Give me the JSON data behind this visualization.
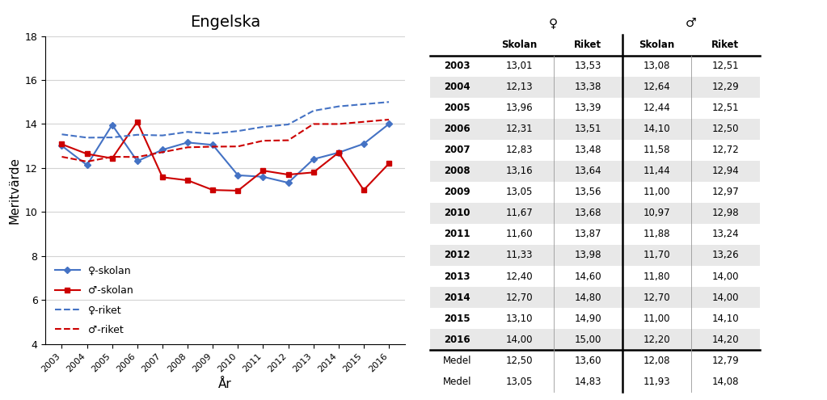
{
  "title": "Engelska",
  "xlabel": "År",
  "ylabel": "Meritvärde",
  "years": [
    2003,
    2004,
    2005,
    2006,
    2007,
    2008,
    2009,
    2010,
    2011,
    2012,
    2013,
    2014,
    2015,
    2016
  ],
  "female_skolan": [
    13.01,
    12.13,
    13.96,
    12.31,
    12.83,
    13.16,
    13.05,
    11.67,
    11.6,
    11.33,
    12.4,
    12.7,
    13.1,
    14.0
  ],
  "female_riket": [
    13.53,
    13.38,
    13.39,
    13.51,
    13.48,
    13.64,
    13.56,
    13.68,
    13.87,
    13.98,
    14.6,
    14.8,
    14.9,
    15.0
  ],
  "male_skolan": [
    13.08,
    12.64,
    12.44,
    14.1,
    11.58,
    11.44,
    11.0,
    10.97,
    11.88,
    11.7,
    11.8,
    12.7,
    11.0,
    12.2
  ],
  "male_riket": [
    12.51,
    12.29,
    12.51,
    12.5,
    12.72,
    12.94,
    12.97,
    12.98,
    13.24,
    13.26,
    14.0,
    14.0,
    14.1,
    14.2
  ],
  "ylim": [
    4,
    18
  ],
  "yticks": [
    4,
    6,
    8,
    10,
    12,
    14,
    16,
    18
  ],
  "color_blue": "#4472C4",
  "color_red": "#CC0000",
  "bg_alt": "#E8E8E8",
  "bg_white": "#FFFFFF",
  "medel_rows": [
    [
      "Medel",
      "12,50",
      "13,60",
      "12,08",
      "12,79"
    ],
    [
      "Medel",
      "13,05",
      "14,83",
      "11,93",
      "14,08"
    ]
  ],
  "table_data": [
    [
      "2003",
      "13,01",
      "13,53",
      "13,08",
      "12,51"
    ],
    [
      "2004",
      "12,13",
      "13,38",
      "12,64",
      "12,29"
    ],
    [
      "2005",
      "13,96",
      "13,39",
      "12,44",
      "12,51"
    ],
    [
      "2006",
      "12,31",
      "13,51",
      "14,10",
      "12,50"
    ],
    [
      "2007",
      "12,83",
      "13,48",
      "11,58",
      "12,72"
    ],
    [
      "2008",
      "13,16",
      "13,64",
      "11,44",
      "12,94"
    ],
    [
      "2009",
      "13,05",
      "13,56",
      "11,00",
      "12,97"
    ],
    [
      "2010",
      "11,67",
      "13,68",
      "10,97",
      "12,98"
    ],
    [
      "2011",
      "11,60",
      "13,87",
      "11,88",
      "13,24"
    ],
    [
      "2012",
      "11,33",
      "13,98",
      "11,70",
      "13,26"
    ],
    [
      "2013",
      "12,40",
      "14,60",
      "11,80",
      "14,00"
    ],
    [
      "2014",
      "12,70",
      "14,80",
      "12,70",
      "14,00"
    ],
    [
      "2015",
      "13,10",
      "14,90",
      "11,00",
      "14,10"
    ],
    [
      "2016",
      "14,00",
      "15,00",
      "12,20",
      "14,20"
    ]
  ]
}
